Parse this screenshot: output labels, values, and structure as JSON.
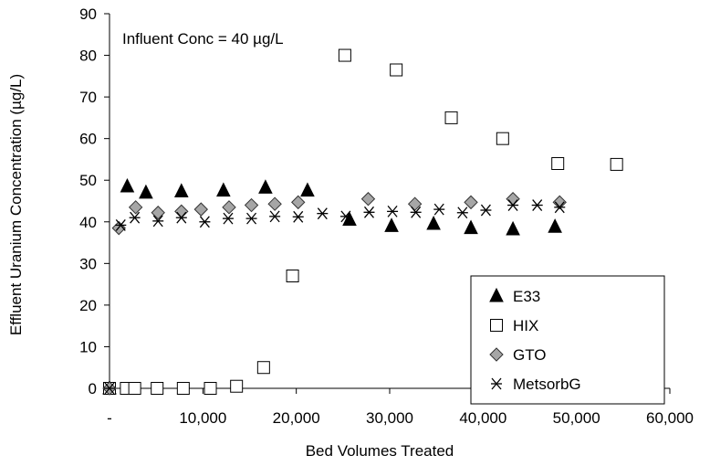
{
  "chart_data": {
    "type": "scatter",
    "title": "",
    "annotation": "Influent Conc = 40 µg/L",
    "xlabel": "Bed Volumes Treated",
    "ylabel": "Effluent Uranium Concentration (µg/L)",
    "xlim": [
      0,
      60000
    ],
    "ylim": [
      0,
      90
    ],
    "x_ticks": [
      0,
      10000,
      20000,
      30000,
      40000,
      50000,
      60000
    ],
    "x_tick_labels": [
      "-",
      "10,000",
      "20,000",
      "30,000",
      "40,000",
      "50,000",
      "60,000"
    ],
    "y_ticks": [
      0,
      10,
      20,
      30,
      40,
      50,
      60,
      70,
      80,
      90
    ],
    "y_tick_labels": [
      "0",
      "10",
      "20",
      "30",
      "40",
      "50",
      "60",
      "70",
      "80",
      "90"
    ],
    "grid": false,
    "legend_position": "bottom-right",
    "series": [
      {
        "name": "E33",
        "marker": "triangle",
        "color": "#000000",
        "points": [
          [
            0,
            0
          ],
          [
            1900,
            48.5
          ],
          [
            3900,
            47
          ],
          [
            7700,
            47.3
          ],
          [
            12200,
            47.5
          ],
          [
            16700,
            48.2
          ],
          [
            21200,
            47.5
          ],
          [
            25700,
            40.5
          ],
          [
            30200,
            39
          ],
          [
            34700,
            39.5
          ],
          [
            38700,
            38.5
          ],
          [
            43200,
            38.2
          ],
          [
            47700,
            38.8
          ]
        ]
      },
      {
        "name": "HIX",
        "marker": "square-open",
        "color": "#000000",
        "points": [
          [
            0,
            0
          ],
          [
            1800,
            0
          ],
          [
            2700,
            0
          ],
          [
            5100,
            0
          ],
          [
            7900,
            0
          ],
          [
            10800,
            0
          ],
          [
            13600,
            0.5
          ],
          [
            16500,
            5
          ],
          [
            19600,
            27
          ],
          [
            25200,
            80
          ],
          [
            30700,
            76.5
          ],
          [
            36600,
            65
          ],
          [
            42100,
            60
          ],
          [
            48000,
            54
          ],
          [
            54300,
            53.8
          ]
        ]
      },
      {
        "name": "GTO",
        "marker": "diamond",
        "color": "#a6a6a6",
        "points": [
          [
            0,
            0
          ],
          [
            1000,
            38.5
          ],
          [
            2800,
            43.5
          ],
          [
            5200,
            42.2
          ],
          [
            7700,
            42.5
          ],
          [
            9800,
            43
          ],
          [
            12800,
            43.5
          ],
          [
            15200,
            44
          ],
          [
            17700,
            44.3
          ],
          [
            20200,
            44.7
          ],
          [
            27700,
            45.5
          ],
          [
            32700,
            44.3
          ],
          [
            38700,
            44.7
          ],
          [
            43200,
            45.5
          ],
          [
            48200,
            44.7
          ]
        ]
      },
      {
        "name": "MetsorbG",
        "marker": "asterisk",
        "color": "#000000",
        "points": [
          [
            0,
            0
          ],
          [
            1200,
            39.2
          ],
          [
            2700,
            41
          ],
          [
            5200,
            40.2
          ],
          [
            7700,
            41
          ],
          [
            10200,
            40
          ],
          [
            12700,
            40.8
          ],
          [
            15200,
            40.8
          ],
          [
            17700,
            41.3
          ],
          [
            20200,
            41.2
          ],
          [
            22800,
            42
          ],
          [
            25300,
            41.3
          ],
          [
            27800,
            42.3
          ],
          [
            30300,
            42.5
          ],
          [
            32800,
            42.3
          ],
          [
            35300,
            43
          ],
          [
            37800,
            42.2
          ],
          [
            40300,
            42.8
          ],
          [
            43200,
            44
          ],
          [
            45800,
            44
          ],
          [
            48200,
            43.5
          ]
        ]
      }
    ]
  }
}
